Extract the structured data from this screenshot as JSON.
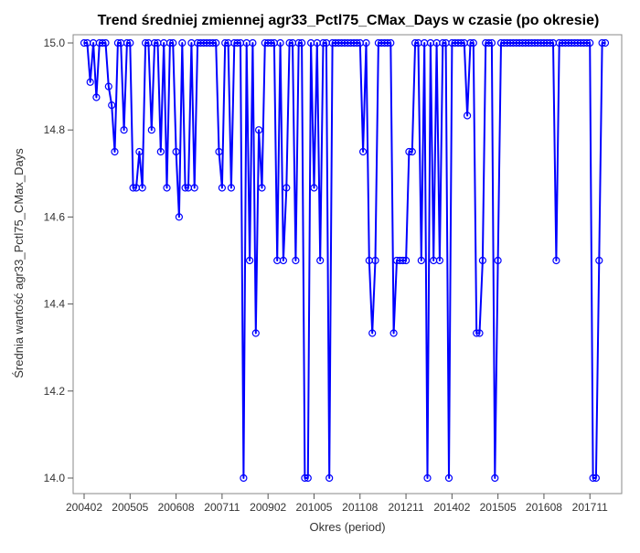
{
  "chart_data": {
    "type": "line",
    "title": "Trend średniej zmiennej agr33_Pctl75_CMax_Days w czasie (po okresie)",
    "xlabel": "Okres (period)",
    "ylabel": "Średnia wartość agr33_Pctl75_CMax_Days",
    "ylim": [
      14.0,
      15.0
    ],
    "yticks": [
      "14.0",
      "14.2",
      "14.4",
      "14.6",
      "14.8",
      "15.0"
    ],
    "xticks": [
      "200402",
      "200505",
      "200608",
      "200711",
      "200902",
      "201005",
      "201108",
      "201211",
      "201402",
      "201505",
      "201608",
      "201711"
    ],
    "xrange_months": [
      0,
      170
    ],
    "grid": false,
    "legend": "none",
    "line_color": "#0000ff",
    "marker": "open-circle",
    "x_month_index": [
      0,
      1,
      2,
      3,
      4,
      5,
      6,
      7,
      8,
      9,
      10,
      11,
      12,
      13,
      14,
      15,
      16,
      17,
      18,
      19,
      20,
      21,
      22,
      23,
      24,
      25,
      26,
      27,
      28,
      29,
      30,
      31,
      32,
      33,
      34,
      35,
      36,
      37,
      38,
      39,
      40,
      41,
      42,
      43,
      44,
      45,
      46,
      47,
      48,
      49,
      50,
      51,
      52,
      53,
      54,
      55,
      56,
      57,
      58,
      59,
      60,
      61,
      62,
      63,
      64,
      65,
      66,
      67,
      68,
      69,
      70,
      71,
      72,
      73,
      74,
      75,
      76,
      77,
      78,
      79,
      80,
      81,
      82,
      83,
      84,
      85,
      86,
      87,
      88,
      89,
      90,
      91,
      92,
      93,
      94,
      95,
      96,
      97,
      98,
      99,
      100,
      101,
      102,
      103,
      104,
      105,
      106,
      107,
      108,
      109,
      110,
      111,
      112,
      113,
      114,
      115,
      116,
      117,
      118,
      119,
      120,
      121,
      122,
      123,
      124,
      125,
      126,
      127,
      128,
      129,
      130,
      131,
      132,
      133,
      134,
      135,
      136,
      137,
      138,
      139,
      140,
      141,
      142,
      143,
      144,
      145,
      146,
      147,
      148,
      149,
      150,
      151,
      152,
      153,
      154,
      155,
      156,
      157,
      158,
      159,
      160,
      161,
      162,
      163,
      164,
      165,
      166,
      167,
      168,
      169,
      170
    ],
    "values": [
      15.0,
      15.0,
      14.91,
      15.0,
      14.875,
      15.0,
      15.0,
      15.0,
      14.9,
      14.857,
      14.75,
      15.0,
      15.0,
      14.8,
      15.0,
      15.0,
      14.667,
      14.667,
      14.75,
      14.667,
      15.0,
      15.0,
      14.8,
      15.0,
      15.0,
      14.75,
      15.0,
      14.667,
      15.0,
      15.0,
      14.75,
      14.6,
      15.0,
      14.667,
      14.667,
      15.0,
      14.667,
      15.0,
      15.0,
      15.0,
      15.0,
      15.0,
      15.0,
      15.0,
      14.75,
      14.667,
      15.0,
      15.0,
      14.667,
      15.0,
      15.0,
      15.0,
      14.0,
      15.0,
      14.5,
      15.0,
      14.333,
      14.8,
      14.667,
      15.0,
      15.0,
      15.0,
      15.0,
      14.5,
      15.0,
      14.5,
      14.667,
      15.0,
      15.0,
      14.5,
      15.0,
      15.0,
      14.0,
      14.0,
      15.0,
      14.667,
      15.0,
      14.5,
      15.0,
      15.0,
      14.0,
      15.0,
      15.0,
      15.0,
      15.0,
      15.0,
      15.0,
      15.0,
      15.0,
      15.0,
      15.0,
      14.75,
      15.0,
      14.5,
      14.333,
      14.5,
      15.0,
      15.0,
      15.0,
      15.0,
      15.0,
      14.333,
      14.5,
      14.5,
      14.5,
      14.5,
      14.75,
      14.75,
      15.0,
      15.0,
      14.5,
      15.0,
      14.0,
      15.0,
      14.5,
      15.0,
      14.5,
      15.0,
      15.0,
      14.0,
      15.0,
      15.0,
      15.0,
      15.0,
      15.0,
      14.833,
      15.0,
      15.0,
      14.333,
      14.333,
      14.5,
      15.0,
      15.0,
      15.0,
      14.0,
      14.5,
      15.0,
      15.0,
      15.0,
      15.0,
      15.0,
      15.0,
      15.0,
      15.0,
      15.0,
      15.0,
      15.0,
      15.0,
      15.0,
      15.0,
      15.0,
      15.0,
      15.0,
      15.0,
      14.5,
      15.0,
      15.0,
      15.0,
      15.0,
      15.0,
      15.0,
      15.0,
      15.0,
      15.0,
      15.0,
      15.0,
      14.0,
      14.0,
      14.5,
      15.0,
      15.0
    ]
  }
}
